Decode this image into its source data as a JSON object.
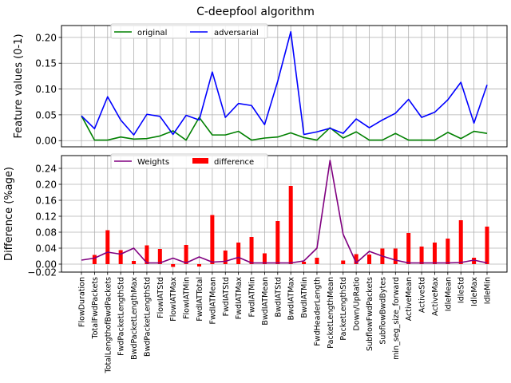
{
  "title": "C-deepfool algorithm",
  "chart_data": [
    {
      "type": "line",
      "ylabel": "Feature values (0-1)",
      "ylim": [
        -0.012,
        0.223
      ],
      "yticks": [
        "0.00",
        "0.05",
        "0.10",
        "0.15",
        "0.20"
      ],
      "grid": true,
      "legend_position": "top-left",
      "categories": [
        "FlowDuration",
        "TotalFwdPackets",
        "TotalLengthofBwdPackets",
        "FwdPacketLengthStd",
        "BwdPacketLengthMax",
        "BwdPacketLengthStd",
        "FlowIATStd",
        "FlowIATMax",
        "FlowIATMin",
        "FwdIATTotal",
        "FwdIATMean",
        "FwdIATStd",
        "FwdIATMax",
        "FwdIATMin",
        "BwdIATMean",
        "BwdIATStd",
        "BwdIATMax",
        "BwdIATMin",
        "FwdHeaderLength",
        "PacketLengthMean",
        "PacketLengthStd",
        "Down/UpRatio",
        "SubflowFwdPackets",
        "SubflowBwdBytes",
        "min_seg_size_forward",
        "ActiveMean",
        "ActiveStd",
        "ActiveMax",
        "IdleMean",
        "IdleStd",
        "IdleMax",
        "IdleMin"
      ],
      "series": [
        {
          "name": "original",
          "color": "#008000",
          "values": [
            0.048,
            0.001,
            0.001,
            0.007,
            0.003,
            0.004,
            0.009,
            0.019,
            0.001,
            0.045,
            0.011,
            0.011,
            0.018,
            0.001,
            0.005,
            0.007,
            0.015,
            0.006,
            0.001,
            0.025,
            0.005,
            0.017,
            0.001,
            0.001,
            0.014,
            0.001,
            0.001,
            0.001,
            0.016,
            0.004,
            0.018,
            0.014
          ]
        },
        {
          "name": "adversarial",
          "color": "#0000ff",
          "values": [
            0.048,
            0.023,
            0.085,
            0.04,
            0.011,
            0.051,
            0.047,
            0.012,
            0.049,
            0.04,
            0.133,
            0.045,
            0.072,
            0.068,
            0.031,
            0.115,
            0.211,
            0.012,
            0.017,
            0.024,
            0.014,
            0.042,
            0.025,
            0.04,
            0.053,
            0.08,
            0.045,
            0.055,
            0.079,
            0.113,
            0.034,
            0.108
          ]
        }
      ]
    },
    {
      "type": "bar",
      "ylabel": "Difference (%age)",
      "ylim": [
        -0.02,
        0.272
      ],
      "yticks": [
        "−0.02",
        "0.00",
        "0.04",
        "0.08",
        "0.12",
        "0.16",
        "0.20",
        "0.24"
      ],
      "grid": true,
      "legend_position": "top-left",
      "categories": [
        "FlowDuration",
        "TotalFwdPackets",
        "TotalLengthofBwdPackets",
        "FwdPacketLengthStd",
        "BwdPacketLengthMax",
        "BwdPacketLengthStd",
        "FlowIATStd",
        "FlowIATMax",
        "FlowIATMin",
        "FwdIATTotal",
        "FwdIATMean",
        "FwdIATStd",
        "FwdIATMax",
        "FwdIATMin",
        "BwdIATMean",
        "BwdIATStd",
        "BwdIATMax",
        "BwdIATMin",
        "FwdHeaderLength",
        "PacketLengthMean",
        "PacketLengthStd",
        "Down/UpRatio",
        "SubflowFwdPackets",
        "SubflowBwdBytes",
        "min_seg_size_forward",
        "ActiveMean",
        "ActiveStd",
        "ActiveMax",
        "IdleMean",
        "IdleStd",
        "IdleMax",
        "IdleMin"
      ],
      "series": [
        {
          "name": "Weights",
          "kind": "line",
          "color": "#800080",
          "values": [
            0.01,
            0.015,
            0.03,
            0.025,
            0.04,
            0.003,
            0.003,
            0.015,
            0.003,
            0.018,
            0.005,
            0.007,
            0.017,
            0.003,
            0.003,
            0.003,
            0.003,
            0.008,
            0.04,
            0.26,
            0.075,
            0.003,
            0.032,
            0.02,
            0.01,
            0.003,
            0.003,
            0.003,
            0.003,
            0.004,
            0.01,
            0.003
          ]
        },
        {
          "name": "difference",
          "kind": "bar",
          "color": "#ff0000",
          "values": [
            0.0,
            0.023,
            0.085,
            0.035,
            0.008,
            0.047,
            0.038,
            -0.007,
            0.048,
            -0.006,
            0.123,
            0.034,
            0.054,
            0.068,
            0.027,
            0.108,
            0.196,
            0.006,
            0.016,
            0.0,
            0.009,
            0.025,
            0.024,
            0.039,
            0.039,
            0.078,
            0.044,
            0.054,
            0.064,
            0.11,
            0.016,
            0.094
          ]
        }
      ]
    }
  ]
}
